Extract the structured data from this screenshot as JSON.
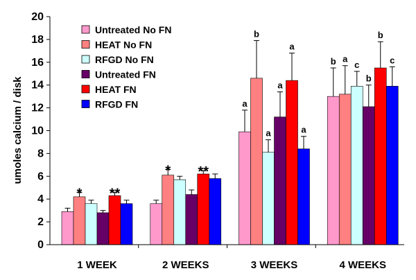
{
  "chart_data": {
    "type": "bar",
    "title": "",
    "xlabel": "",
    "ylabel": "umoles calcium / disk",
    "ylim": [
      0,
      20
    ],
    "yticks": [
      0,
      2,
      4,
      6,
      8,
      10,
      12,
      14,
      16,
      18,
      20
    ],
    "grid": false,
    "legend_position": "top-left",
    "categories": [
      "1 WEEK",
      "2 WEEKS",
      "3 WEEKS",
      "4 WEEKS"
    ],
    "series": [
      {
        "name": "Untreated No FN",
        "color": "#ff99cc",
        "values": [
          2.9,
          3.6,
          9.9,
          13.0
        ],
        "errors": [
          0.3,
          0.3,
          1.9,
          2.5
        ],
        "annotations": [
          "",
          "",
          "a",
          "b"
        ]
      },
      {
        "name": "HEAT No FN",
        "color": "#ff8080",
        "values": [
          4.2,
          6.1,
          14.6,
          13.2
        ],
        "errors": [
          0.4,
          0.5,
          3.3,
          2.5
        ],
        "annotations": [
          "*",
          "*",
          "b",
          "a"
        ]
      },
      {
        "name": "RFGD No FN",
        "color": "#ccffff",
        "values": [
          3.6,
          5.7,
          8.1,
          13.9
        ],
        "errors": [
          0.3,
          0.3,
          1.1,
          1.3
        ],
        "annotations": [
          "",
          "",
          "a",
          "c"
        ]
      },
      {
        "name": "Untreated FN",
        "color": "#660066",
        "values": [
          2.8,
          4.4,
          11.2,
          12.1
        ],
        "errors": [
          0.2,
          0.4,
          2.2,
          1.9
        ],
        "annotations": [
          "",
          "",
          "a",
          "b"
        ]
      },
      {
        "name": "HEAT FN",
        "color": "#ff0000",
        "values": [
          4.3,
          6.2,
          14.4,
          15.5
        ],
        "errors": [
          0.3,
          0.3,
          2.4,
          2.3
        ],
        "annotations": [
          "**",
          "**",
          "a",
          "b"
        ]
      },
      {
        "name": "RFGD FN",
        "color": "#0000ff",
        "values": [
          3.6,
          5.8,
          8.4,
          13.9
        ],
        "errors": [
          0.3,
          0.4,
          1.1,
          1.7
        ],
        "annotations": [
          "",
          "",
          "a",
          "c"
        ]
      }
    ]
  }
}
